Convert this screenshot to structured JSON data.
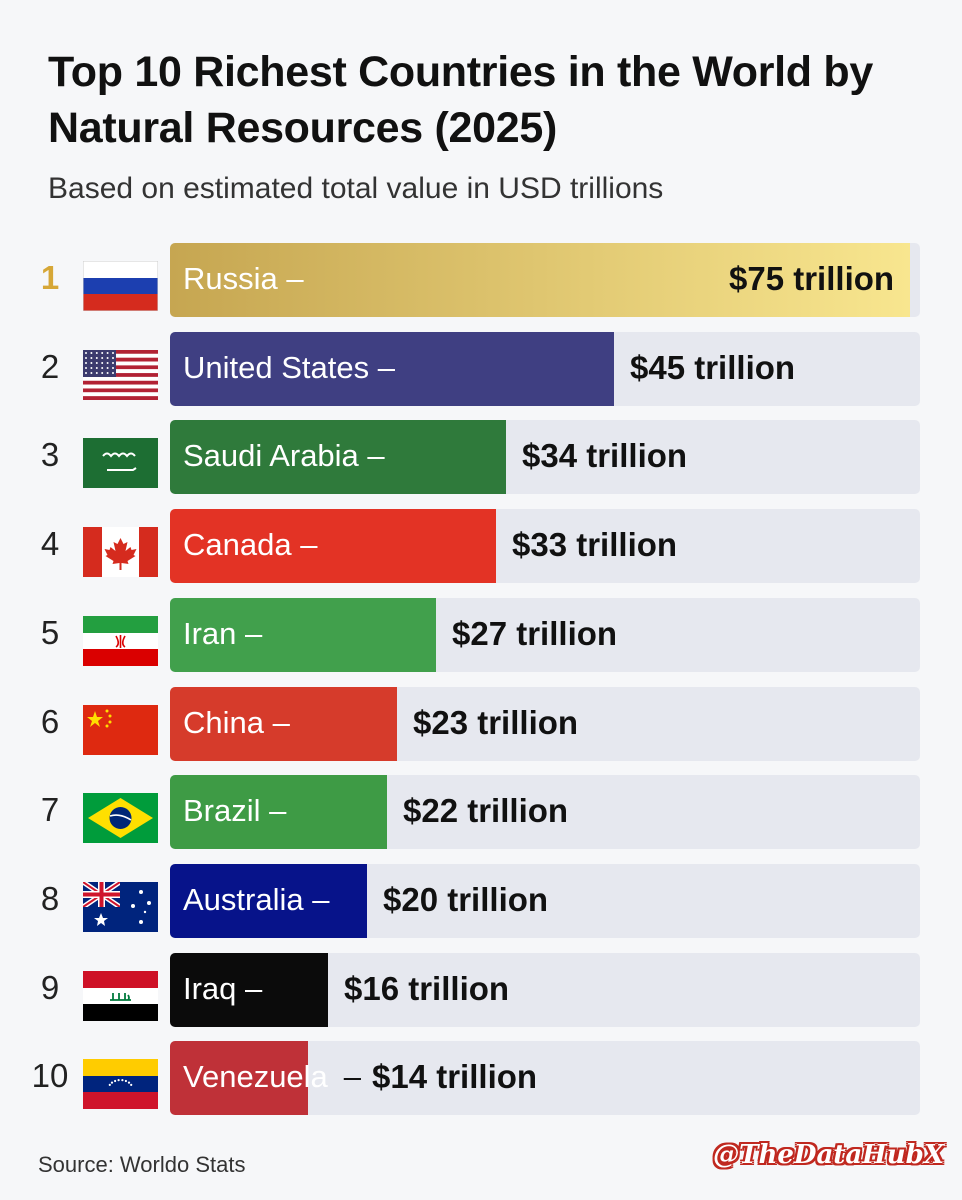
{
  "title": "Top 10 Richest Countries in the World by Natural Resources (2025)",
  "subtitle": "Based on estimated total value in USD trillions",
  "source": "Source: Worldo Stats",
  "watermark": "@TheDataHubX",
  "colors": {
    "russia_start": "#c6a651",
    "russia_end": "#f8e68f",
    "united_states": "#3f3f82",
    "saudi_arabia": "#2f7a3b",
    "canada": "#e33325",
    "iran": "#41a04c",
    "china": "#d63b2b",
    "brazil": "#3e9b45",
    "australia": "#07138a",
    "iraq": "#0b0b0b",
    "venezuela": "#bf3138",
    "track": "#e6e8ef",
    "rank_gold": "#d6a737"
  },
  "chart_data": {
    "type": "bar",
    "orientation": "horizontal",
    "title": "Top 10 Richest Countries in the World by Natural Resources (2025)",
    "subtitle": "Based on estimated total value in USD trillions",
    "unit": "USD trillions",
    "xlim": [
      0,
      76
    ],
    "grid": false,
    "legend": "none",
    "categories": [
      "Russia",
      "United States",
      "Saudi Arabia",
      "Canada",
      "Iran",
      "China",
      "Brazil",
      "Australia",
      "Iraq",
      "Venezuela"
    ],
    "values": [
      75,
      45,
      34,
      33,
      27,
      23,
      22,
      20,
      16,
      14
    ],
    "ranks": [
      "1",
      "2",
      "3",
      "4",
      "5",
      "6",
      "7",
      "8",
      "9",
      "10"
    ],
    "country_labels": [
      "Russia –",
      "United States –",
      "Saudi Arabia –",
      "Canada –",
      "Iran –",
      "China –",
      "Brazil –",
      "Australia –",
      "Iraq –",
      "Venezuela"
    ],
    "value_labels": [
      "$75 trillion",
      "$45 trillion",
      "$34 trillion",
      "$33 trillion",
      "$27 trillion",
      "$23 trillion",
      "$22 trillion",
      "$20 trillion",
      "$16 trillion",
      "$14 trillion"
    ],
    "value_prefix_dash": [
      "",
      "",
      "",
      "",
      "",
      "",
      "",
      "",
      "",
      "–"
    ],
    "flags": [
      "russia-flag",
      "united-states-flag",
      "saudi-arabia-flag",
      "canada-flag",
      "iran-flag",
      "china-flag",
      "brazil-flag",
      "australia-flag",
      "iraq-flag",
      "venezuela-flag"
    ]
  }
}
